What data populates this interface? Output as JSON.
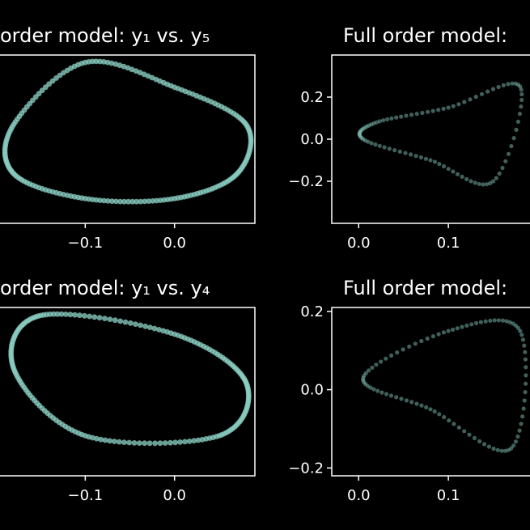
{
  "colors": {
    "background": "#000000",
    "series": "#8dd3c7",
    "axes": "#ffffff"
  },
  "chart_data": [
    {
      "type": "scatter",
      "title": "order model: y₁ vs. y₅",
      "xticks": [
        {
          "v": -0.1,
          "label": "−0.1"
        },
        {
          "v": 0.0,
          "label": "0.0"
        }
      ],
      "yticks": [],
      "xlim": [
        -0.2,
        0.09
      ],
      "ylim": [
        -0.35,
        0.33
      ],
      "grid": false,
      "series": [
        {
          "style": "dense",
          "points": [
            [
              -0.1,
              0.3
            ],
            [
              0.0,
              0.2
            ],
            [
              0.08,
              0.05
            ],
            [
              0.07,
              -0.15
            ],
            [
              0.0,
              -0.25
            ],
            [
              -0.1,
              -0.25
            ],
            [
              -0.18,
              -0.15
            ],
            [
              -0.18,
              0.05
            ]
          ]
        }
      ]
    },
    {
      "type": "scatter",
      "title": "Full order model:",
      "xticks": [
        {
          "v": 0.0,
          "label": "0.0"
        },
        {
          "v": 0.1,
          "label": "0.1"
        }
      ],
      "yticks": [
        {
          "v": 0.2,
          "label": "0.2"
        },
        {
          "v": 0.0,
          "label": "0.0"
        },
        {
          "v": -0.2,
          "label": "−0.2"
        }
      ],
      "xlim": [
        -0.03,
        0.2
      ],
      "ylim": [
        -0.4,
        0.4
      ],
      "grid": false,
      "series": [
        {
          "style": "sparse",
          "points": [
            [
              0.005,
              0.0
            ],
            [
              0.02,
              0.08
            ],
            [
              0.1,
              0.15
            ],
            [
              0.18,
              0.25
            ],
            [
              0.15,
              -0.2
            ],
            [
              0.08,
              -0.1
            ]
          ]
        }
      ]
    },
    {
      "type": "scatter",
      "title": "order model: y₁ vs. y₄",
      "xticks": [
        {
          "v": -0.1,
          "label": "−0.1"
        },
        {
          "v": 0.0,
          "label": "0.0"
        }
      ],
      "yticks": [],
      "xlim": [
        -0.2,
        0.09
      ],
      "ylim": [
        -0.35,
        0.28
      ],
      "grid": false,
      "series": [
        {
          "style": "dense",
          "points": [
            [
              -0.15,
              0.25
            ],
            [
              0.0,
              0.18
            ],
            [
              0.08,
              0.0
            ],
            [
              0.05,
              -0.2
            ],
            [
              -0.1,
              -0.2
            ],
            [
              -0.18,
              0.05
            ]
          ]
        }
      ]
    },
    {
      "type": "scatter",
      "title": "Full order model:",
      "xticks": [
        {
          "v": 0.0,
          "label": "0.0"
        },
        {
          "v": 0.1,
          "label": "0.1"
        }
      ],
      "yticks": [
        {
          "v": 0.2,
          "label": "0.2"
        },
        {
          "v": 0.0,
          "label": "0.0"
        },
        {
          "v": -0.2,
          "label": "−0.2"
        }
      ],
      "xlim": [
        -0.03,
        0.2
      ],
      "ylim": [
        -0.22,
        0.21
      ],
      "grid": false,
      "series": [
        {
          "style": "sparse",
          "points": [
            [
              0.005,
              0.03
            ],
            [
              0.1,
              0.15
            ],
            [
              0.18,
              0.15
            ],
            [
              0.17,
              -0.15
            ],
            [
              0.08,
              -0.05
            ]
          ]
        }
      ]
    }
  ]
}
